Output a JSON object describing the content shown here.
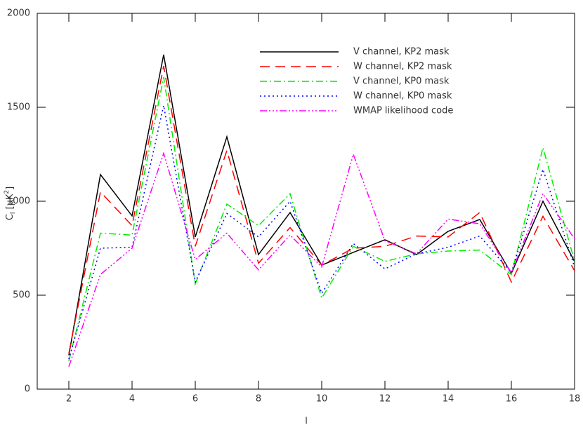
{
  "chart_data": {
    "type": "line",
    "xlabel": "l",
    "ylabel": {
      "base": "C",
      "sub": "l",
      "mid": " [μK",
      "sup": "2",
      "end": "]"
    },
    "x": [
      2,
      3,
      4,
      5,
      6,
      7,
      8,
      9,
      10,
      11,
      12,
      13,
      14,
      15,
      16,
      17,
      18
    ],
    "xlim": [
      1,
      18
    ],
    "xticks": [
      2,
      4,
      6,
      8,
      10,
      12,
      14,
      16,
      18
    ],
    "ylim": [
      0,
      2000
    ],
    "yticks": [
      0,
      500,
      1000,
      1500,
      2000
    ],
    "legend": "upper right",
    "series": [
      {
        "name": "V channel, KP2 mask",
        "color": "#000000",
        "dash": "none",
        "values": [
          180,
          1142,
          922,
          1780,
          810,
          1343,
          716,
          940,
          660,
          728,
          795,
          716,
          840,
          903,
          616,
          1000,
          679
        ]
      },
      {
        "name": "W channel, KP2 mask",
        "color": "#ff0000",
        "dash": "14,8",
        "values": [
          190,
          1050,
          870,
          1720,
          760,
          1270,
          670,
          860,
          660,
          750,
          760,
          815,
          810,
          940,
          570,
          920,
          630
        ]
      },
      {
        "name": "V channel, KP0 mask",
        "color": "#00ee00",
        "dash": "10,4,2,4",
        "values": [
          150,
          830,
          820,
          1660,
          560,
          985,
          870,
          1040,
          485,
          760,
          680,
          720,
          735,
          740,
          610,
          1285,
          680
        ]
      },
      {
        "name": "W channel, KP0 mask",
        "color": "#0000ff",
        "dash": "2,4",
        "values": [
          160,
          750,
          755,
          1510,
          570,
          935,
          810,
          1000,
          510,
          775,
          640,
          720,
          755,
          815,
          620,
          1170,
          650
        ]
      },
      {
        "name": "WMAP likelihood code",
        "color": "#ff00ff",
        "dash": "10,3,2,3,2,3,2,3",
        "values": [
          120,
          610,
          750,
          1255,
          690,
          830,
          635,
          820,
          650,
          1250,
          790,
          720,
          905,
          880,
          620,
          1040,
          800
        ]
      }
    ]
  }
}
